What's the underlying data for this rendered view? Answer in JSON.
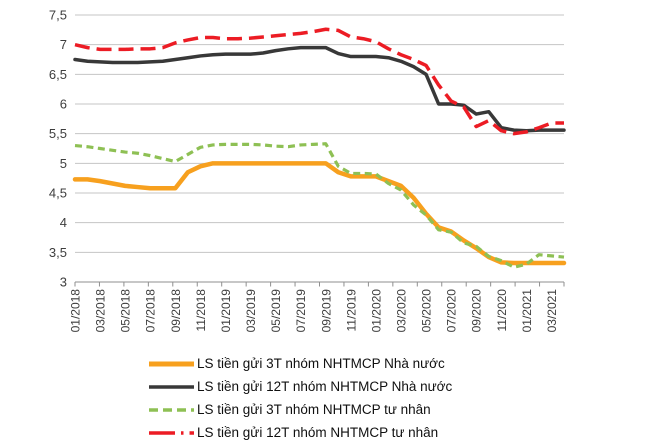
{
  "chart_data": {
    "type": "line",
    "title": "",
    "grid": "horizontal",
    "legend_position": "bottom",
    "y_axis": {
      "min": 3,
      "max": 7.5,
      "step": 0.5,
      "tick_labels": [
        "7,5",
        "7",
        "6,5",
        "6",
        "5,5",
        "5",
        "4,5",
        "4",
        "3,5",
        "3"
      ]
    },
    "x_axis": {
      "tick_labels": [
        "01/2018",
        "03/2018",
        "05/2018",
        "07/2018",
        "09/2018",
        "11/2018",
        "01/2019",
        "03/2019",
        "05/2019",
        "07/2019",
        "09/2019",
        "11/2019",
        "01/2020",
        "03/2020",
        "05/2020",
        "07/2020",
        "09/2020",
        "11/2020",
        "01/2021",
        "03/2021"
      ],
      "months": [
        "01/2018",
        "02/2018",
        "03/2018",
        "04/2018",
        "05/2018",
        "06/2018",
        "07/2018",
        "08/2018",
        "09/2018",
        "10/2018",
        "11/2018",
        "12/2018",
        "01/2019",
        "02/2019",
        "03/2019",
        "04/2019",
        "05/2019",
        "06/2019",
        "07/2019",
        "08/2019",
        "09/2019",
        "10/2019",
        "11/2019",
        "12/2019",
        "01/2020",
        "02/2020",
        "03/2020",
        "04/2020",
        "05/2020",
        "06/2020",
        "07/2020",
        "08/2020",
        "09/2020",
        "10/2020",
        "11/2020",
        "12/2020",
        "01/2021",
        "02/2021",
        "03/2021",
        "04/2021"
      ]
    },
    "series": [
      {
        "name": "LS tiền gửi 3T nhóm NHTMCP Nhà nước",
        "color": "#F7A01E",
        "style": "solid",
        "width": 4.5,
        "values": [
          4.73,
          4.73,
          4.7,
          4.66,
          4.62,
          4.6,
          4.58,
          4.58,
          4.58,
          4.85,
          4.95,
          5.0,
          5.0,
          5.0,
          5.0,
          5.0,
          5.0,
          5.0,
          5.0,
          5.0,
          5.0,
          4.85,
          4.78,
          4.78,
          4.78,
          4.7,
          4.62,
          4.42,
          4.15,
          3.92,
          3.85,
          3.7,
          3.57,
          3.42,
          3.33,
          3.32,
          3.32,
          3.32,
          3.32,
          3.32
        ]
      },
      {
        "name": "LS tiền gửi 12T nhóm NHTMCP Nhà nước",
        "color": "#383838",
        "style": "solid",
        "width": 3.5,
        "values": [
          6.75,
          6.72,
          6.71,
          6.7,
          6.7,
          6.7,
          6.71,
          6.72,
          6.75,
          6.78,
          6.81,
          6.83,
          6.84,
          6.84,
          6.84,
          6.86,
          6.9,
          6.93,
          6.95,
          6.95,
          6.95,
          6.85,
          6.8,
          6.8,
          6.8,
          6.78,
          6.72,
          6.63,
          6.5,
          6.0,
          6.0,
          5.98,
          5.83,
          5.87,
          5.6,
          5.56,
          5.55,
          5.56,
          5.56,
          5.56
        ]
      },
      {
        "name": "LS tiền gửi 3T nhóm NHTMCP tư nhân",
        "color": "#8EC054",
        "style": "dashed",
        "width": 3.2,
        "values": [
          5.3,
          5.28,
          5.25,
          5.22,
          5.19,
          5.17,
          5.13,
          5.08,
          5.03,
          5.15,
          5.27,
          5.31,
          5.32,
          5.32,
          5.32,
          5.31,
          5.29,
          5.28,
          5.31,
          5.32,
          5.33,
          4.95,
          4.83,
          4.83,
          4.82,
          4.66,
          4.55,
          4.3,
          4.13,
          3.88,
          3.84,
          3.66,
          3.6,
          3.43,
          3.36,
          3.25,
          3.3,
          3.46,
          3.44,
          3.42
        ]
      },
      {
        "name": "LS tiền gửi 12T nhóm NHTMCP tư nhân",
        "color": "#EC1C24",
        "style": "long-dash-dot",
        "width": 3.5,
        "values": [
          7.0,
          6.95,
          6.92,
          6.92,
          6.92,
          6.93,
          6.93,
          6.95,
          7.03,
          7.08,
          7.12,
          7.12,
          7.1,
          7.1,
          7.11,
          7.13,
          7.15,
          7.17,
          7.19,
          7.22,
          7.26,
          7.24,
          7.13,
          7.1,
          7.05,
          6.93,
          6.83,
          6.75,
          6.65,
          6.32,
          6.05,
          5.95,
          5.62,
          5.72,
          5.55,
          5.5,
          5.53,
          5.6,
          5.68,
          5.68
        ]
      }
    ]
  },
  "colors": {
    "gridline": "#C4C4C4",
    "axis": "#8F8F8F",
    "tick_text": "#3d3d3d"
  }
}
